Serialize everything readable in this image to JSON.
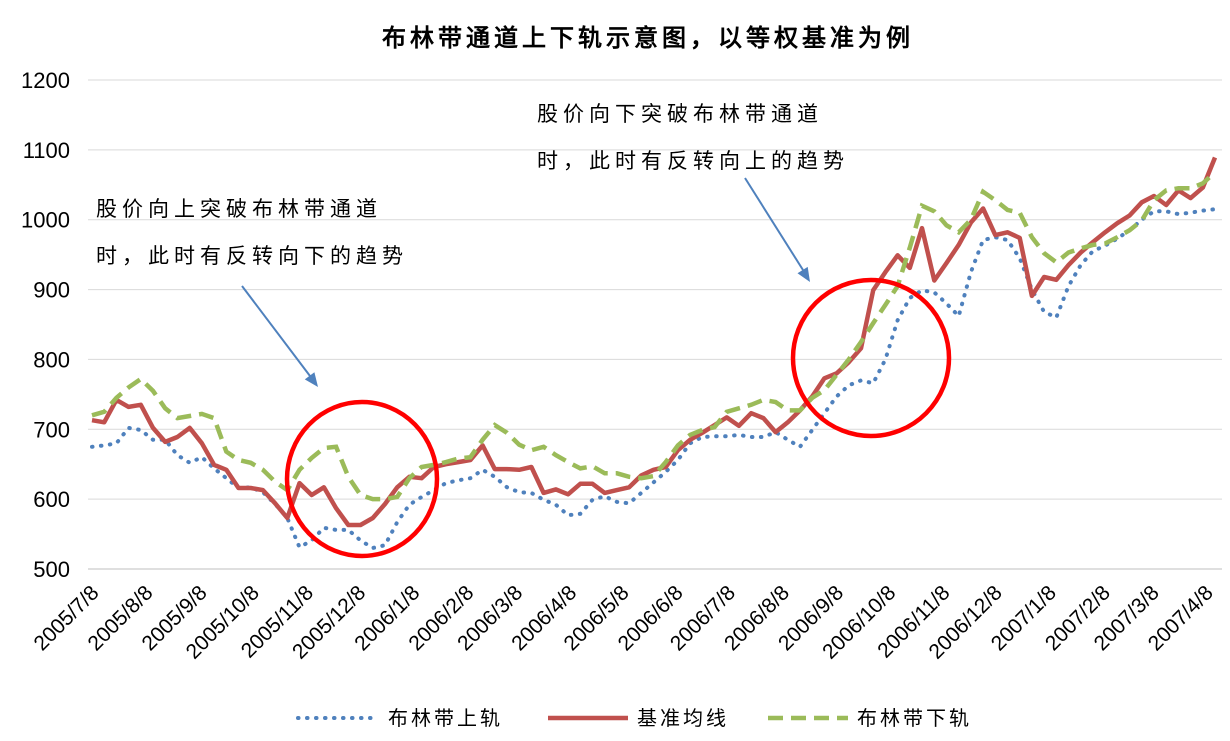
{
  "chart_data": {
    "type": "line",
    "title": "布林带通道上下轨示意图，以等权基准为例",
    "ylim": [
      500,
      1200
    ],
    "yticks": [
      500,
      600,
      700,
      800,
      900,
      1000,
      1100,
      1200
    ],
    "xticks": [
      "2005/7/8",
      "2005/8/8",
      "2005/9/8",
      "2005/10/8",
      "2005/11/8",
      "2005/12/8",
      "2006/1/8",
      "2006/2/8",
      "2006/3/8",
      "2006/4/8",
      "2006/5/8",
      "2006/6/8",
      "2006/7/8",
      "2006/8/8",
      "2006/9/8",
      "2006/10/8",
      "2006/11/8",
      "2006/12/8",
      "2007/1/8",
      "2007/2/8",
      "2007/3/8",
      "2007/4/8"
    ],
    "grid": true,
    "legend_position": "bottom",
    "x": [
      "2005/7/8",
      "2005/7/15",
      "2005/7/22",
      "2005/7/29",
      "2005/8/5",
      "2005/8/12",
      "2005/8/19",
      "2005/8/26",
      "2005/9/2",
      "2005/9/9",
      "2005/9/16",
      "2005/9/23",
      "2005/9/30",
      "2005/10/7",
      "2005/10/14",
      "2005/10/21",
      "2005/10/28",
      "2005/11/4",
      "2005/11/11",
      "2005/11/18",
      "2005/11/25",
      "2005/12/2",
      "2005/12/9",
      "2005/12/16",
      "2005/12/23",
      "2005/12/30",
      "2006/1/6",
      "2006/1/13",
      "2006/1/20",
      "2006/1/27",
      "2006/2/3",
      "2006/2/10",
      "2006/2/17",
      "2006/2/24",
      "2006/3/3",
      "2006/3/10",
      "2006/3/17",
      "2006/3/24",
      "2006/3/31",
      "2006/4/7",
      "2006/4/14",
      "2006/4/21",
      "2006/4/28",
      "2006/5/5",
      "2006/5/12",
      "2006/5/19",
      "2006/5/26",
      "2006/6/2",
      "2006/6/9",
      "2006/6/16",
      "2006/6/23",
      "2006/6/30",
      "2006/7/7",
      "2006/7/14",
      "2006/7/21",
      "2006/7/28",
      "2006/8/4",
      "2006/8/11",
      "2006/8/18",
      "2006/8/25",
      "2006/9/1",
      "2006/9/8",
      "2006/9/15",
      "2006/9/22",
      "2006/9/29",
      "2006/10/6",
      "2006/10/13",
      "2006/10/20",
      "2006/10/27",
      "2006/11/3",
      "2006/11/10",
      "2006/11/17",
      "2006/11/24",
      "2006/12/1",
      "2006/12/8",
      "2006/12/15",
      "2006/12/22",
      "2006/12/29",
      "2007/1/5",
      "2007/1/12",
      "2007/1/19",
      "2007/1/26",
      "2007/2/2",
      "2007/2/9",
      "2007/2/16",
      "2007/2/23",
      "2007/3/2",
      "2007/3/9",
      "2007/3/16",
      "2007/3/23",
      "2007/3/30",
      "2007/4/6",
      "2007/4/13"
    ],
    "series": [
      {
        "name": "布林带上轨",
        "color": "#4F81BD",
        "line_style": "dotted",
        "values": [
          675,
          677,
          680,
          702,
          699,
          685,
          685,
          663,
          652,
          660,
          644,
          630,
          616,
          617,
          610,
          593,
          573,
          531,
          541,
          559,
          556,
          556,
          541,
          530,
          534,
          567,
          592,
          603,
          613,
          623,
          627,
          630,
          642,
          632,
          617,
          610,
          609,
          599,
          592,
          577,
          579,
          599,
          604,
          596,
          594,
          609,
          624,
          639,
          656,
          680,
          689,
          690,
          690,
          692,
          689,
          689,
          696,
          685,
          675,
          699,
          723,
          747,
          763,
          770,
          766,
          800,
          856,
          888,
          899,
          896,
          880,
          862,
          925,
          971,
          975,
          971,
          945,
          900,
          868,
          860,
          905,
          935,
          955,
          963,
          973,
          985,
          1000,
          1012,
          1012,
          1008,
          1010,
          1013,
          1015
        ]
      },
      {
        "name": "基准均线",
        "color": "#C0504D",
        "line_style": "solid",
        "values": [
          713,
          710,
          742,
          732,
          735,
          702,
          682,
          689,
          702,
          680,
          649,
          642,
          616,
          616,
          613,
          594,
          573,
          623,
          606,
          617,
          587,
          563,
          563,
          573,
          593,
          617,
          632,
          630,
          646,
          650,
          653,
          656,
          677,
          643,
          643,
          642,
          646,
          609,
          614,
          607,
          622,
          622,
          609,
          613,
          617,
          634,
          642,
          646,
          670,
          685,
          695,
          706,
          717,
          705,
          723,
          716,
          696,
          710,
          727,
          747,
          773,
          780,
          796,
          816,
          899,
          925,
          949,
          931,
          988,
          913,
          938,
          964,
          996,
          1016,
          978,
          982,
          974,
          891,
          918,
          914,
          935,
          953,
          968,
          982,
          995,
          1006,
          1025,
          1034,
          1021,
          1042,
          1031,
          1046,
          1089
        ]
      },
      {
        "name": "布林带下轨",
        "color": "#9BBB59",
        "line_style": "dashed",
        "values": [
          720,
          725,
          745,
          760,
          772,
          755,
          730,
          716,
          719,
          722,
          716,
          668,
          656,
          652,
          642,
          625,
          613,
          642,
          659,
          673,
          675,
          632,
          606,
          600,
          600,
          603,
          630,
          646,
          649,
          653,
          658,
          660,
          685,
          706,
          695,
          678,
          670,
          675,
          663,
          653,
          644,
          647,
          637,
          637,
          632,
          630,
          633,
          653,
          677,
          692,
          699,
          703,
          725,
          730,
          735,
          742,
          739,
          727,
          727,
          745,
          756,
          778,
          800,
          825,
          852,
          878,
          905,
          960,
          1020,
          1012,
          992,
          982,
          1000,
          1040,
          1028,
          1014,
          1010,
          975,
          952,
          939,
          953,
          959,
          964,
          966,
          975,
          985,
          999,
          1028,
          1042,
          1045,
          1045,
          1052,
          1068
        ]
      }
    ],
    "annotations": [
      {
        "lines": [
          "股价向上突破布林带通道",
          "时，此时有反转向下的趋势"
        ]
      },
      {
        "lines": [
          "股价向下突破布林带通道",
          "时，此时有反转向上的趋势"
        ]
      }
    ],
    "annotation_style": {
      "arrow_color": "#4F81BD",
      "circle_color": "#FF0000"
    }
  }
}
